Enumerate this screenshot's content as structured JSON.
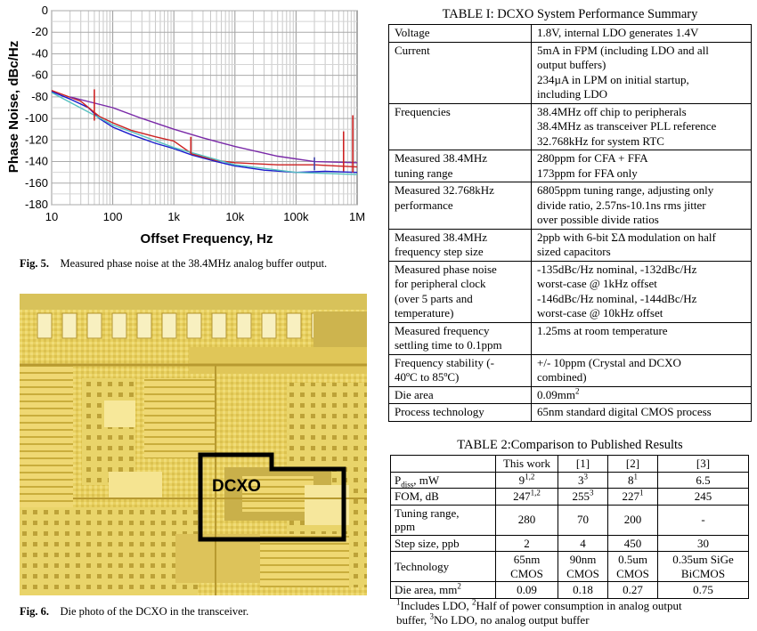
{
  "figure5": {
    "caption_label": "Fig. 5.",
    "caption_text": "Measured phase noise at the 38.4MHz analog buffer output.",
    "chart_data": {
      "type": "line",
      "xlabel": "Offset Frequency, Hz",
      "ylabel": "Phase Noise, dBc/Hz",
      "x_scale": "log",
      "xlim": [
        10,
        1000000
      ],
      "ylim": [
        -180,
        0
      ],
      "x_ticks": [
        "10",
        "100",
        "1k",
        "10k",
        "100k",
        "1M"
      ],
      "y_ticks": [
        "0",
        "-20",
        "-40",
        "-60",
        "-80",
        "-100",
        "-120",
        "-140",
        "-160",
        "-180"
      ],
      "grid": true,
      "series": [
        {
          "color": "#1a1acc",
          "x": [
            10,
            20,
            40,
            60,
            100,
            200,
            500,
            1000,
            2000,
            5000,
            10000,
            30000,
            100000,
            300000,
            1000000
          ],
          "y": [
            -75,
            -82,
            -90,
            -100,
            -108,
            -115,
            -123,
            -128,
            -134,
            -140,
            -144,
            -148,
            -150,
            -149,
            -150
          ]
        },
        {
          "color": "#cc2222",
          "x": [
            10,
            30,
            60,
            100,
            200,
            500,
            1000,
            2000,
            5000,
            10000,
            50000,
            200000,
            1000000
          ],
          "y": [
            -74,
            -84,
            -98,
            -104,
            -111,
            -117,
            -121,
            -133,
            -139,
            -141,
            -143,
            -143,
            -145
          ]
        },
        {
          "color": "#7a2aa8",
          "x": [
            20,
            100,
            300,
            1000,
            3000,
            10000,
            50000,
            200000,
            1000000
          ],
          "y": [
            -80,
            -90,
            -100,
            -110,
            -118,
            -126,
            -135,
            -140,
            -141
          ]
        },
        {
          "color": "#55c0c0",
          "x": [
            10,
            100,
            1000,
            10000,
            100000,
            1000000
          ],
          "y": [
            -76,
            -106,
            -127,
            -143,
            -150,
            -152
          ]
        }
      ],
      "spurs": [
        {
          "x": 50,
          "y_top": -73,
          "y_base": -102,
          "color": "#cc2222"
        },
        {
          "x": 1900,
          "y_top": -117,
          "y_base": -133,
          "color": "#cc2222"
        },
        {
          "x": 200000,
          "y_top": -136,
          "y_base": -148,
          "color": "#4444aa"
        },
        {
          "x": 600000,
          "y_top": -112,
          "y_base": -149,
          "color": "#cc2222"
        },
        {
          "x": 850000,
          "y_top": -97,
          "y_base": -150,
          "color": "#cc2222"
        }
      ]
    }
  },
  "figure6": {
    "caption_label": "Fig. 6.",
    "caption_text": "Die photo of the DCXO in the transceiver.",
    "label": "DCXO"
  },
  "table1": {
    "title": "TABLE I:  DCXO System Performance Summary",
    "rows": [
      {
        "param": [
          "Voltage"
        ],
        "value": [
          "1.8V, internal LDO generates 1.4V"
        ]
      },
      {
        "param": [
          "Current"
        ],
        "value": [
          "5mA in FPM (including LDO and all",
          "output buffers)",
          "234µA in LPM on initial startup,",
          "including LDO"
        ]
      },
      {
        "param": [
          "Frequencies"
        ],
        "value": [
          "38.4MHz off chip to peripherals",
          "38.4MHz as transceiver PLL reference",
          "32.768kHz for system RTC"
        ]
      },
      {
        "param": [
          "Measured 38.4MHz",
          "tuning range"
        ],
        "value": [
          "280ppm for CFA + FFA",
          "173ppm for FFA only"
        ]
      },
      {
        "param": [
          "Measured 32.768kHz",
          "performance"
        ],
        "value": [
          "6805ppm tuning range, adjusting only",
          "divide ratio, 2.57ns-10.1ns rms jitter",
          "over possible divide ratios"
        ]
      },
      {
        "param": [
          "Measured 38.4MHz",
          "frequency step size"
        ],
        "value": [
          "2ppb with 6-bit ΣΔ modulation on half",
          "sized capacitors"
        ]
      },
      {
        "param": [
          "Measured phase noise",
          "for peripheral clock",
          "(over 5 parts and",
          "temperature)"
        ],
        "value": [
          "-135dBc/Hz nominal, -132dBc/Hz",
          "worst-case @ 1kHz offset",
          "-146dBc/Hz nominal, -144dBc/Hz",
          "worst-case @ 10kHz offset"
        ]
      },
      {
        "param": [
          "Measured frequency",
          "settling time to 0.1ppm"
        ],
        "value": [
          "1.25ms at room temperature"
        ]
      },
      {
        "param": [
          "Frequency stability (-",
          "40ºC to 85ºC)"
        ],
        "value": [
          "+/- 10ppm (Crystal and DCXO",
          "combined)"
        ]
      },
      {
        "param": [
          "Die area"
        ],
        "value": [
          "0.09mm"
        ],
        "value_sup": "2"
      },
      {
        "param": [
          "Process technology"
        ],
        "value": [
          "65nm standard digital CMOS process"
        ]
      }
    ]
  },
  "table2": {
    "title": "TABLE 2:Comparison to Published Results",
    "headers": [
      "",
      "This work",
      "[1]",
      "[2]",
      "[3]"
    ],
    "pdiss_label": "P",
    "pdiss_sub": "diss",
    "pdiss_unit": ", mW",
    "pdiss": [
      {
        "v": "9",
        "s": "1,2"
      },
      {
        "v": "3",
        "s": "3"
      },
      {
        "v": "8",
        "s": "1"
      },
      {
        "v": "6.5",
        "s": ""
      }
    ],
    "fom_label": "FOM, dB",
    "fom": [
      {
        "v": "247",
        "s": "1,2"
      },
      {
        "v": "255",
        "s": "3"
      },
      {
        "v": "227",
        "s": "1"
      },
      {
        "v": "245",
        "s": ""
      }
    ],
    "tuning_label": [
      "Tuning range,",
      "ppm"
    ],
    "tuning": [
      "280",
      "70",
      "200",
      "-"
    ],
    "step_label": "Step size, ppb",
    "step": [
      "2",
      "4",
      "450",
      "30"
    ],
    "tech_label": "Technology",
    "tech": [
      [
        "65nm",
        "CMOS"
      ],
      [
        "90nm",
        "CMOS"
      ],
      [
        "0.5um",
        "CMOS"
      ],
      [
        "0.35um SiGe",
        "BiCMOS"
      ]
    ],
    "die_label": "Die area, mm",
    "die_label_sup": "2",
    "die": [
      "0.09",
      "0.18",
      "0.27",
      "0.75"
    ],
    "footnote_1": "1",
    "footnote_1_text": "Includes LDO, ",
    "footnote_2": "2",
    "footnote_2_text": "Half of power consumption in analog output",
    "footnote_line2_a": "buffer, ",
    "footnote_3": "3",
    "footnote_3_text": "No LDO, no analog output buffer"
  }
}
